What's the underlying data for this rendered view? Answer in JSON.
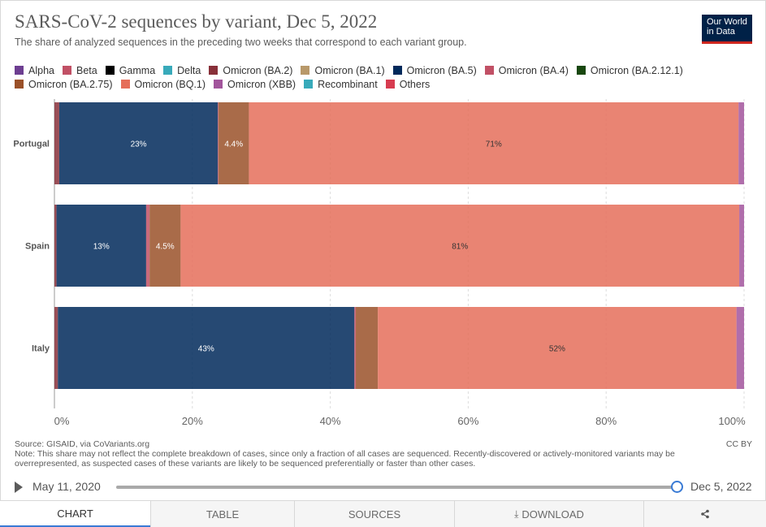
{
  "header": {
    "title": "SARS-CoV-2 sequences by variant, Dec 5, 2022",
    "subtitle": "The share of analyzed sequences in the preceding two weeks that correspond to each variant group.",
    "logo_line1": "Our World",
    "logo_line2": "in Data"
  },
  "legend": [
    {
      "label": "Alpha",
      "color": "#6d3e91"
    },
    {
      "label": "Beta",
      "color": "#c15065"
    },
    {
      "label": "Gamma",
      "color": "#000000"
    },
    {
      "label": "Delta",
      "color": "#38aaba"
    },
    {
      "label": "Omicron (BA.2)",
      "color": "#883039"
    },
    {
      "label": "Omicron (BA.1)",
      "color": "#b8996a"
    },
    {
      "label": "Omicron (BA.5)",
      "color": "#00295b"
    },
    {
      "label": "Omicron (BA.4)",
      "color": "#c15065"
    },
    {
      "label": "Omicron (BA.2.12.1)",
      "color": "#18470f"
    },
    {
      "label": "Omicron (BA.2.75)",
      "color": "#9a5129"
    },
    {
      "label": "Omicron (BQ.1)",
      "color": "#e56e5a"
    },
    {
      "label": "Omicron (XBB)",
      "color": "#a2559c"
    },
    {
      "label": "Recombinant",
      "color": "#38aaba"
    },
    {
      "label": "Others",
      "color": "#d73c50"
    }
  ],
  "chart_data": {
    "type": "bar",
    "orientation": "horizontal",
    "stacked": true,
    "categories": [
      "Portugal",
      "Spain",
      "Italy"
    ],
    "xlim": [
      0,
      100
    ],
    "xticks": [
      "0%",
      "20%",
      "40%",
      "60%",
      "80%",
      "100%"
    ],
    "grid": true,
    "series": [
      {
        "name": "Omicron (BA.2)",
        "color": "#883039",
        "values": [
          0.7,
          0.3,
          0.5
        ]
      },
      {
        "name": "Omicron (BA.5)",
        "color": "#00295b",
        "values": [
          23,
          13,
          43
        ]
      },
      {
        "name": "Omicron (BA.4)",
        "color": "#c15065",
        "values": [
          0.1,
          0.5,
          0.2
        ]
      },
      {
        "name": "Omicron (BA.2.75)",
        "color": "#9a5129",
        "values": [
          4.4,
          4.5,
          3.2
        ]
      },
      {
        "name": "Omicron (BQ.1)",
        "color": "#e56e5a",
        "values": [
          71,
          81,
          52
        ]
      },
      {
        "name": "Omicron (XBB)",
        "color": "#a2559c",
        "values": [
          0.8,
          0.7,
          1.1
        ]
      }
    ],
    "data_labels": [
      {
        "country": "Portugal",
        "series": "Omicron (BA.5)",
        "text": "23%"
      },
      {
        "country": "Portugal",
        "series": "Omicron (BA.2.75)",
        "text": "4.4%"
      },
      {
        "country": "Portugal",
        "series": "Omicron (BQ.1)",
        "text": "71%"
      },
      {
        "country": "Spain",
        "series": "Omicron (BA.5)",
        "text": "13%"
      },
      {
        "country": "Spain",
        "series": "Omicron (BA.2.75)",
        "text": "4.5%"
      },
      {
        "country": "Spain",
        "series": "Omicron (BQ.1)",
        "text": "81%"
      },
      {
        "country": "Italy",
        "series": "Omicron (BA.5)",
        "text": "43%"
      },
      {
        "country": "Italy",
        "series": "Omicron (BQ.1)",
        "text": "52%"
      }
    ]
  },
  "footer": {
    "source": "Source: GISAID, via CoVariants.org",
    "note": "Note: This share may not reflect the complete breakdown of cases, since only a fraction of all cases are sequenced. Recently-discovered or actively-monitored variants may be overrepresented, as suspected cases of these variants are likely to be sequenced preferentially or faster than other cases.",
    "license": "CC BY"
  },
  "timeline": {
    "start": "May 11, 2020",
    "end": "Dec 5, 2022",
    "position": 1.0
  },
  "tabs": [
    {
      "label": "CHART",
      "active": true
    },
    {
      "label": "TABLE",
      "active": false
    },
    {
      "label": "SOURCES",
      "active": false
    },
    {
      "label": "DOWNLOAD",
      "active": false
    }
  ],
  "icons": {
    "play": "play-icon",
    "download": "download-icon",
    "share": "share-icon"
  }
}
